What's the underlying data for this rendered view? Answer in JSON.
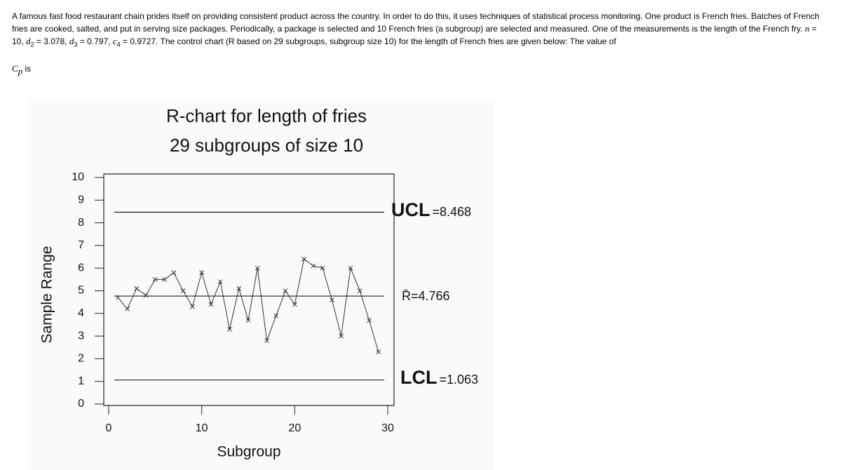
{
  "question": {
    "text_before": "A famous fast food restaurant chain prides itself on providing consistent product across the country. In order to do this, it uses techniques of statistical process monitoring. One product is French fries. Batches of French fries are cooked, salted, and put in serving size packages. Periodically, a package is selected and 10 French fries (a subgroup) are selected and measured. One of the measurements is the length of the French fry.",
    "params": [
      {
        "symbol": "n",
        "value": "= 10,"
      },
      {
        "symbol": "d",
        "sub": "2",
        "value": "= 3.078,"
      },
      {
        "symbol": "d",
        "sub": "3",
        "value": "= 0.797,"
      },
      {
        "symbol": "c",
        "sub": "4",
        "value": "= 0.9727."
      }
    ],
    "text_after": "The control chart (R based on 29 subgroups, subgroup size 10) for the length of French fries are given below: The value of",
    "cp_symbol": "C",
    "cp_sub": "p",
    "text_end": "is"
  },
  "chart_data": {
    "type": "line",
    "title": "R-chart for length of fries",
    "subtitle": "29 subgroups of size 10",
    "x_label": "Subgroup",
    "y_label": "Sample Range",
    "x": [
      1,
      2,
      3,
      4,
      5,
      6,
      7,
      8,
      9,
      10,
      11,
      12,
      13,
      14,
      15,
      16,
      17,
      18,
      19,
      20,
      21,
      22,
      23,
      24,
      25,
      26,
      27,
      28,
      29
    ],
    "series": [
      {
        "color": "#333333",
        "values": [
          4.7,
          4.2,
          5.1,
          4.8,
          5.5,
          5.5,
          5.8,
          5.0,
          4.3,
          5.8,
          4.4,
          5.4,
          3.3,
          5.1,
          3.7,
          6.0,
          2.8,
          3.9,
          5.0,
          4.4,
          6.4,
          6.1,
          6.0,
          4.6,
          3.0,
          6.0,
          5.0,
          3.7,
          2.3
        ]
      }
    ],
    "control_lines": [
      {
        "name": "UCL",
        "value": 8.468,
        "label": "=8.468"
      },
      {
        "value": 4.766,
        "label": "R̄=4.766"
      },
      {
        "name": "LCL",
        "value": 1.063,
        "label": "=1.063"
      }
    ],
    "xlim": [
      0,
      30
    ],
    "xticks": [
      0,
      10,
      20,
      30
    ],
    "ylim": [
      0,
      10
    ],
    "yticks": [
      0,
      1,
      2,
      3,
      4,
      5,
      6,
      7,
      8,
      9,
      10
    ]
  }
}
